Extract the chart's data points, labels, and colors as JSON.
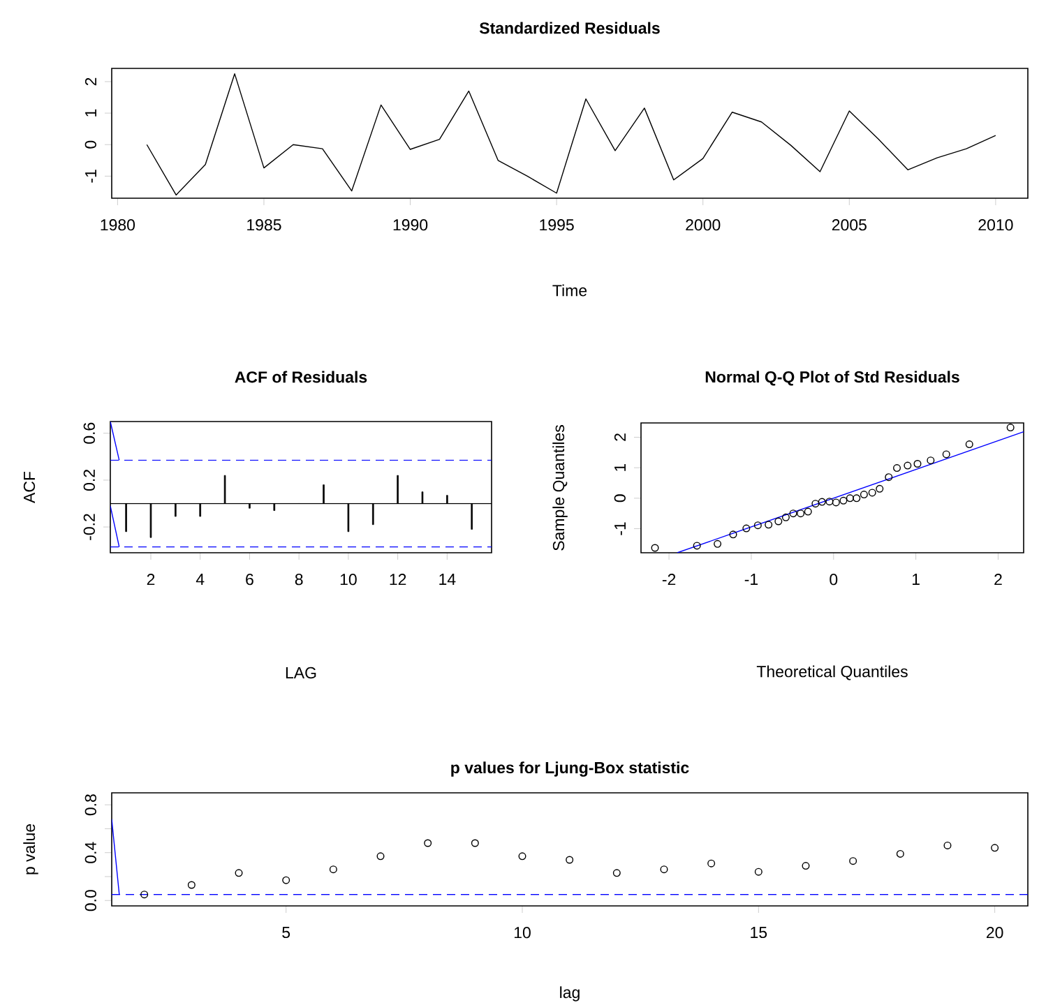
{
  "chart_data": [
    {
      "type": "line",
      "title": "Standardized Residuals",
      "xlabel": "Time",
      "x": [
        1981,
        1982,
        1983,
        1984,
        1985,
        1986,
        1987,
        1988,
        1989,
        1990,
        1991,
        1992,
        1993,
        1994,
        1995,
        1996,
        1997,
        1998,
        1999,
        2000,
        2001,
        2002,
        2003,
        2004,
        2005,
        2006,
        2007,
        2008,
        2009,
        2010
      ],
      "series": [
        {
          "color": "#000000",
          "values": [
            0.0,
            -1.6,
            -0.63,
            2.25,
            -0.74,
            0.0,
            -0.13,
            -1.47,
            1.26,
            -0.15,
            0.17,
            1.7,
            -0.5,
            -1.0,
            -1.54,
            1.45,
            -0.19,
            1.16,
            -1.12,
            -0.44,
            1.03,
            0.72,
            -0.02,
            -0.86,
            1.07,
            0.17,
            -0.8,
            -0.42,
            -0.13,
            0.29
          ]
        }
      ],
      "xlim": [
        1979.8,
        2011.1
      ],
      "ylim": [
        -1.7,
        2.42
      ],
      "xticks": [
        1980,
        1985,
        1990,
        1995,
        2000,
        2005,
        2010
      ],
      "yticks": [
        -1,
        0,
        1,
        2
      ]
    },
    {
      "type": "bar",
      "title": "ACF of Residuals",
      "xlabel": "LAG",
      "ylabel": "ACF",
      "x": [
        1,
        2,
        3,
        4,
        5,
        6,
        7,
        8,
        9,
        10,
        11,
        12,
        13,
        14,
        15
      ],
      "series": [
        {
          "type": "bar",
          "color": "#000000",
          "values": [
            -0.24,
            -0.29,
            -0.11,
            -0.11,
            0.24,
            -0.04,
            -0.06,
            0.0,
            0.16,
            -0.24,
            -0.18,
            0.24,
            0.1,
            0.07,
            -0.22
          ]
        },
        {
          "type": "line",
          "color": "#0000ff",
          "x": [
            0.36,
            0.72
          ],
          "values": [
            0.7,
            0.37
          ]
        },
        {
          "type": "line",
          "color": "#0000ff",
          "x": [
            0.36,
            0.72
          ],
          "values": [
            -0.02,
            -0.37
          ]
        }
      ],
      "ref_lines": [
        {
          "axis": "y",
          "value": 0.37,
          "color": "#0000ff",
          "line_style": "dashed"
        },
        {
          "axis": "y",
          "value": -0.37,
          "color": "#0000ff",
          "line_style": "dashed"
        },
        {
          "axis": "y",
          "value": 0,
          "color": "#000000",
          "line_style": "solid"
        }
      ],
      "xlim": [
        0.36,
        15.8
      ],
      "ylim": [
        -0.42,
        0.7
      ],
      "xticks": [
        2,
        4,
        6,
        8,
        10,
        12,
        14
      ],
      "yticks": [
        -0.2,
        0.2,
        0.6
      ]
    },
    {
      "type": "scatter",
      "title": "Normal Q-Q Plot of Std Residuals",
      "xlabel": "Theoretical Quantiles",
      "ylabel": "Sample Quantiles",
      "series": [
        {
          "color": "#000000",
          "marker": "circle",
          "x": [
            -2.17,
            -1.66,
            -1.41,
            -1.22,
            -1.06,
            -0.92,
            -0.79,
            -0.67,
            -0.58,
            -0.49,
            -0.4,
            -0.31,
            -0.22,
            -0.14,
            -0.05,
            0.03,
            0.12,
            0.2,
            0.28,
            0.37,
            0.47,
            0.56,
            0.67,
            0.77,
            0.9,
            1.02,
            1.18,
            1.37,
            1.65,
            2.15
          ],
          "values": [
            -1.63,
            -1.56,
            -1.5,
            -1.19,
            -0.99,
            -0.89,
            -0.87,
            -0.76,
            -0.63,
            -0.5,
            -0.5,
            -0.44,
            -0.18,
            -0.12,
            -0.11,
            -0.14,
            -0.08,
            0.0,
            0.0,
            0.12,
            0.18,
            0.31,
            0.69,
            0.99,
            1.07,
            1.13,
            1.24,
            1.44,
            1.77,
            2.32
          ]
        },
        {
          "type": "line",
          "color": "#0000ff",
          "marker": "none",
          "x": [
            -1.9,
            2.31
          ],
          "values": [
            -1.79,
            2.18
          ]
        }
      ],
      "xlim": [
        -2.34,
        2.31
      ],
      "ylim": [
        -1.79,
        2.47
      ],
      "xticks": [
        -2,
        -1,
        0,
        1,
        2
      ],
      "yticks": [
        -1,
        0,
        1,
        2
      ]
    },
    {
      "type": "scatter",
      "title": "p values for Ljung-Box statistic",
      "xlabel": "lag",
      "ylabel": "p value",
      "x": [
        2,
        3,
        4,
        5,
        6,
        7,
        8,
        9,
        10,
        11,
        12,
        13,
        14,
        15,
        16,
        17,
        18,
        19,
        20
      ],
      "series": [
        {
          "color": "#000000",
          "marker": "circle",
          "values": [
            0.05,
            0.13,
            0.23,
            0.17,
            0.26,
            0.37,
            0.48,
            0.48,
            0.37,
            0.34,
            0.23,
            0.26,
            0.31,
            0.24,
            0.29,
            0.33,
            0.39,
            0.46,
            0.44
          ]
        },
        {
          "type": "line",
          "color": "#0000ff",
          "marker": "none",
          "x": [
            1.31,
            1.47
          ],
          "values": [
            0.68,
            0.05
          ]
        }
      ],
      "ref_lines": [
        {
          "axis": "y",
          "value": 0.05,
          "color": "#0000ff",
          "line_style": "dashed"
        }
      ],
      "xlim": [
        1.31,
        20.7
      ],
      "ylim": [
        -0.045,
        0.9
      ],
      "xticks": [
        5,
        10,
        15,
        20
      ],
      "yticks": [
        {
          "value": 0,
          "label": "0.0"
        },
        {
          "value": 0.2,
          "label": null
        },
        0.4,
        {
          "value": 0.6,
          "label": null
        },
        0.8
      ]
    }
  ]
}
